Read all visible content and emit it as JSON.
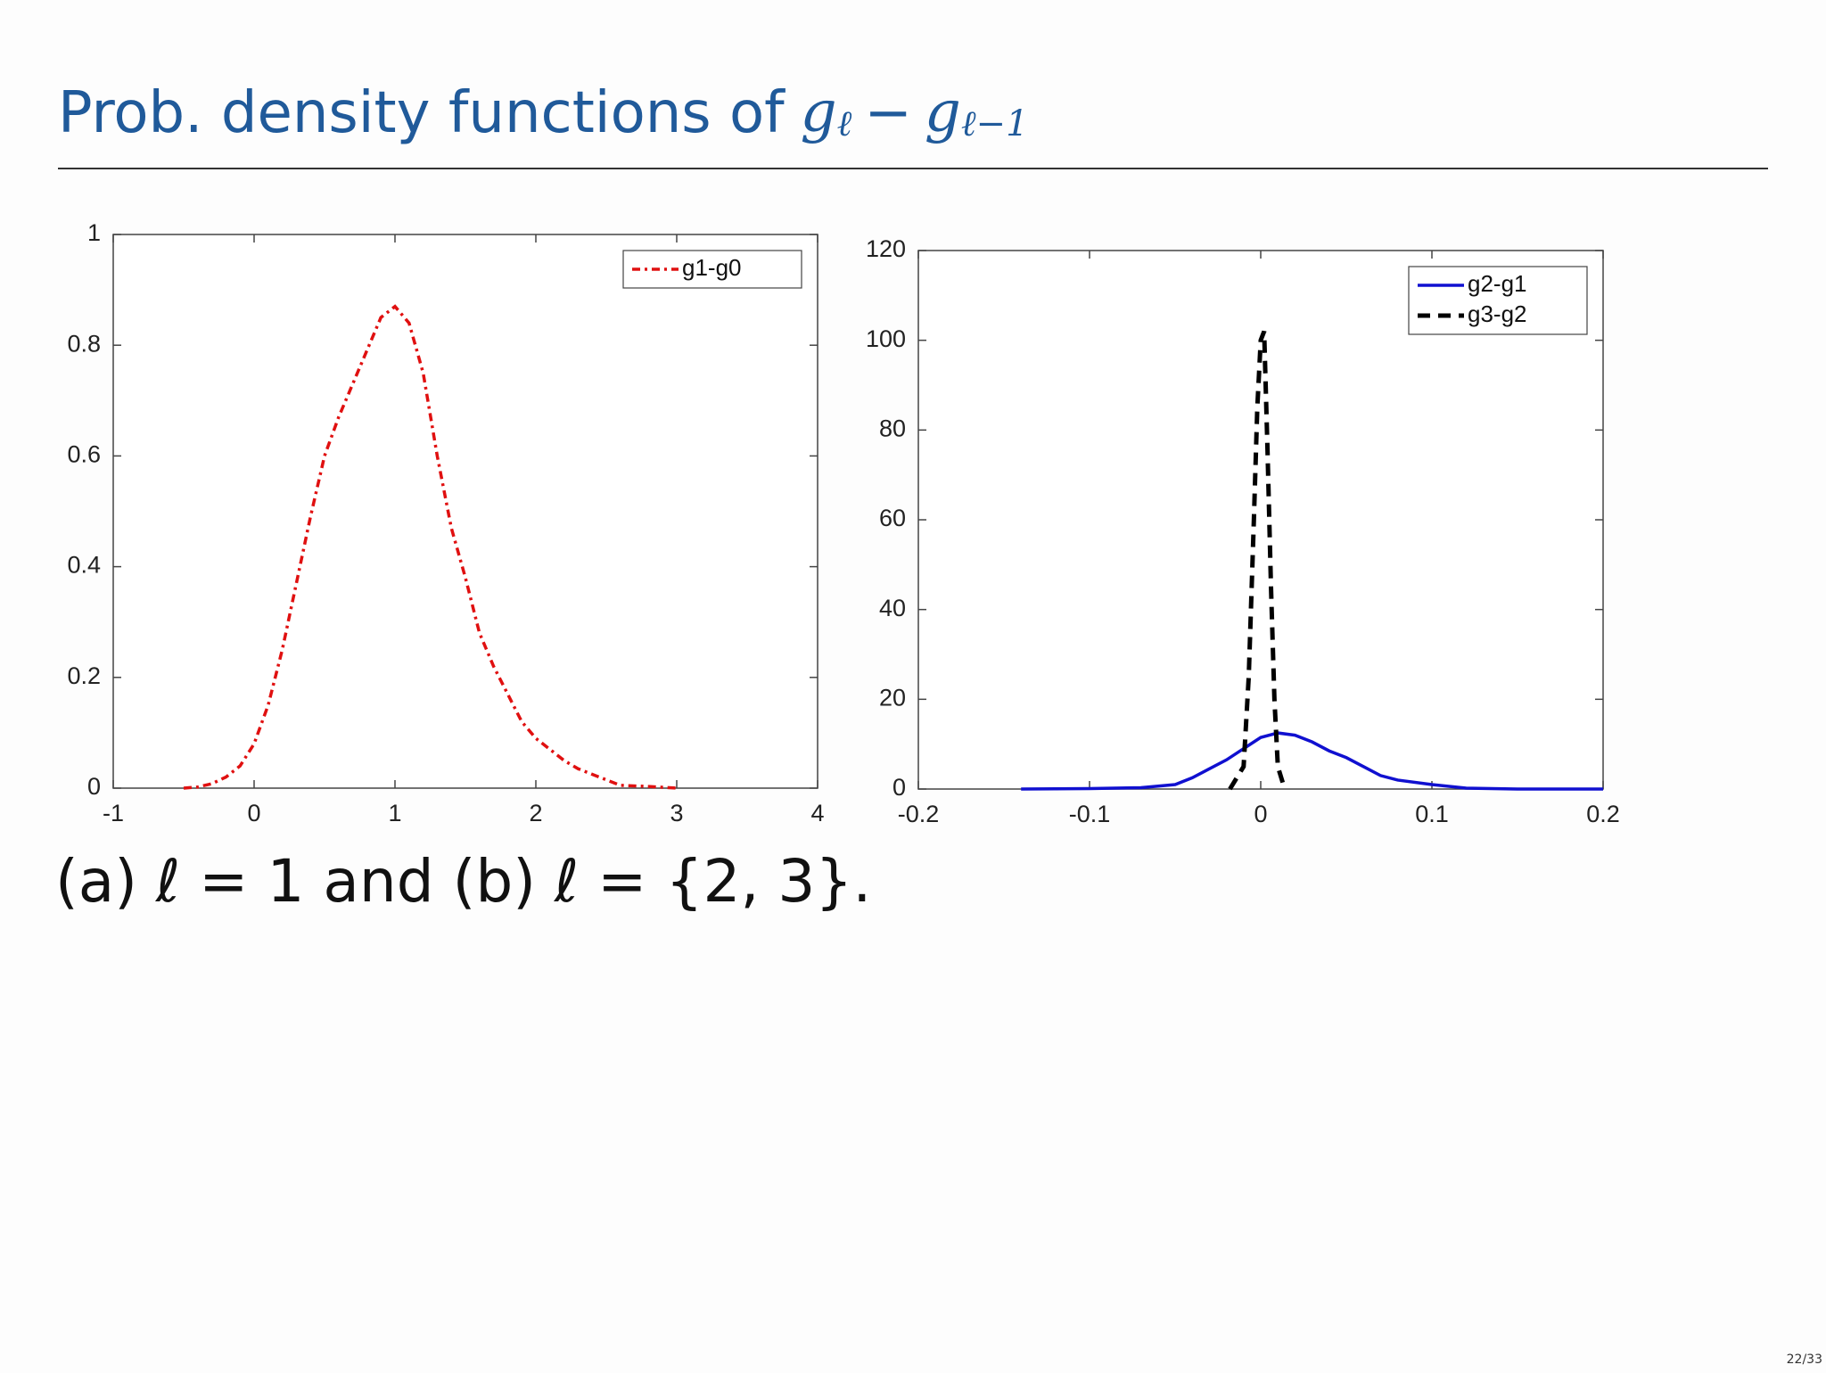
{
  "header": {
    "title": "Prob. density functions of",
    "formula": [
      "g",
      "ℓ",
      "−",
      "g",
      "ℓ−1"
    ]
  },
  "caption": "(a) ℓ = 1 and (b) ℓ = {2, 3}.",
  "page_number": "22/33",
  "chart_data": [
    {
      "type": "line",
      "xlim": [
        -1,
        4
      ],
      "xticks": [
        -1,
        0,
        1,
        2,
        3,
        4
      ],
      "ylim": [
        0,
        1
      ],
      "yticks": [
        0,
        0.2,
        0.4,
        0.6,
        0.8,
        1
      ],
      "legend": "upper right",
      "series": [
        {
          "name": "g1-g0",
          "color": "#e01010",
          "linestyle": "dashdot",
          "x": [
            -0.5,
            -0.4,
            -0.3,
            -0.2,
            -0.1,
            0,
            0.1,
            0.2,
            0.3,
            0.4,
            0.5,
            0.6,
            0.7,
            0.8,
            0.9,
            1.0,
            1.1,
            1.2,
            1.3,
            1.4,
            1.5,
            1.6,
            1.7,
            1.8,
            1.9,
            2.0,
            2.1,
            2.2,
            2.3,
            2.4,
            2.5,
            2.6,
            2.8,
            3.0
          ],
          "values": [
            0,
            0.002,
            0.008,
            0.02,
            0.04,
            0.08,
            0.15,
            0.25,
            0.37,
            0.49,
            0.6,
            0.67,
            0.73,
            0.79,
            0.85,
            0.87,
            0.84,
            0.75,
            0.6,
            0.47,
            0.38,
            0.28,
            0.22,
            0.17,
            0.12,
            0.09,
            0.07,
            0.05,
            0.035,
            0.025,
            0.015,
            0.005,
            0.003,
            0
          ]
        }
      ]
    },
    {
      "type": "line",
      "xlim": [
        -0.2,
        0.2
      ],
      "xticks": [
        -0.2,
        -0.1,
        0,
        0.1,
        0.2
      ],
      "ylim": [
        0,
        120
      ],
      "yticks": [
        0,
        20,
        40,
        60,
        80,
        100,
        120
      ],
      "legend": "upper right",
      "series": [
        {
          "name": "g2-g1",
          "color": "#1010d0",
          "linestyle": "solid",
          "x": [
            -0.14,
            -0.1,
            -0.07,
            -0.05,
            -0.04,
            -0.03,
            -0.02,
            -0.01,
            0,
            0.01,
            0.02,
            0.03,
            0.04,
            0.05,
            0.06,
            0.07,
            0.08,
            0.1,
            0.12,
            0.15,
            0.2
          ],
          "values": [
            0,
            0.1,
            0.3,
            1,
            2.5,
            4.5,
            6.5,
            9,
            11.5,
            12.5,
            12,
            10.5,
            8.5,
            7,
            5,
            3,
            2,
            1,
            0.2,
            0,
            0
          ]
        },
        {
          "name": "g3-g2",
          "color": "#000000",
          "linestyle": "dashed",
          "x": [
            -0.018,
            -0.01,
            -0.007,
            -0.004,
            -0.002,
            0,
            0.002,
            0.004,
            0.006,
            0.008,
            0.01,
            0.014
          ],
          "values": [
            0,
            5,
            25,
            60,
            85,
            100,
            102,
            75,
            45,
            20,
            5,
            0
          ]
        }
      ]
    }
  ]
}
